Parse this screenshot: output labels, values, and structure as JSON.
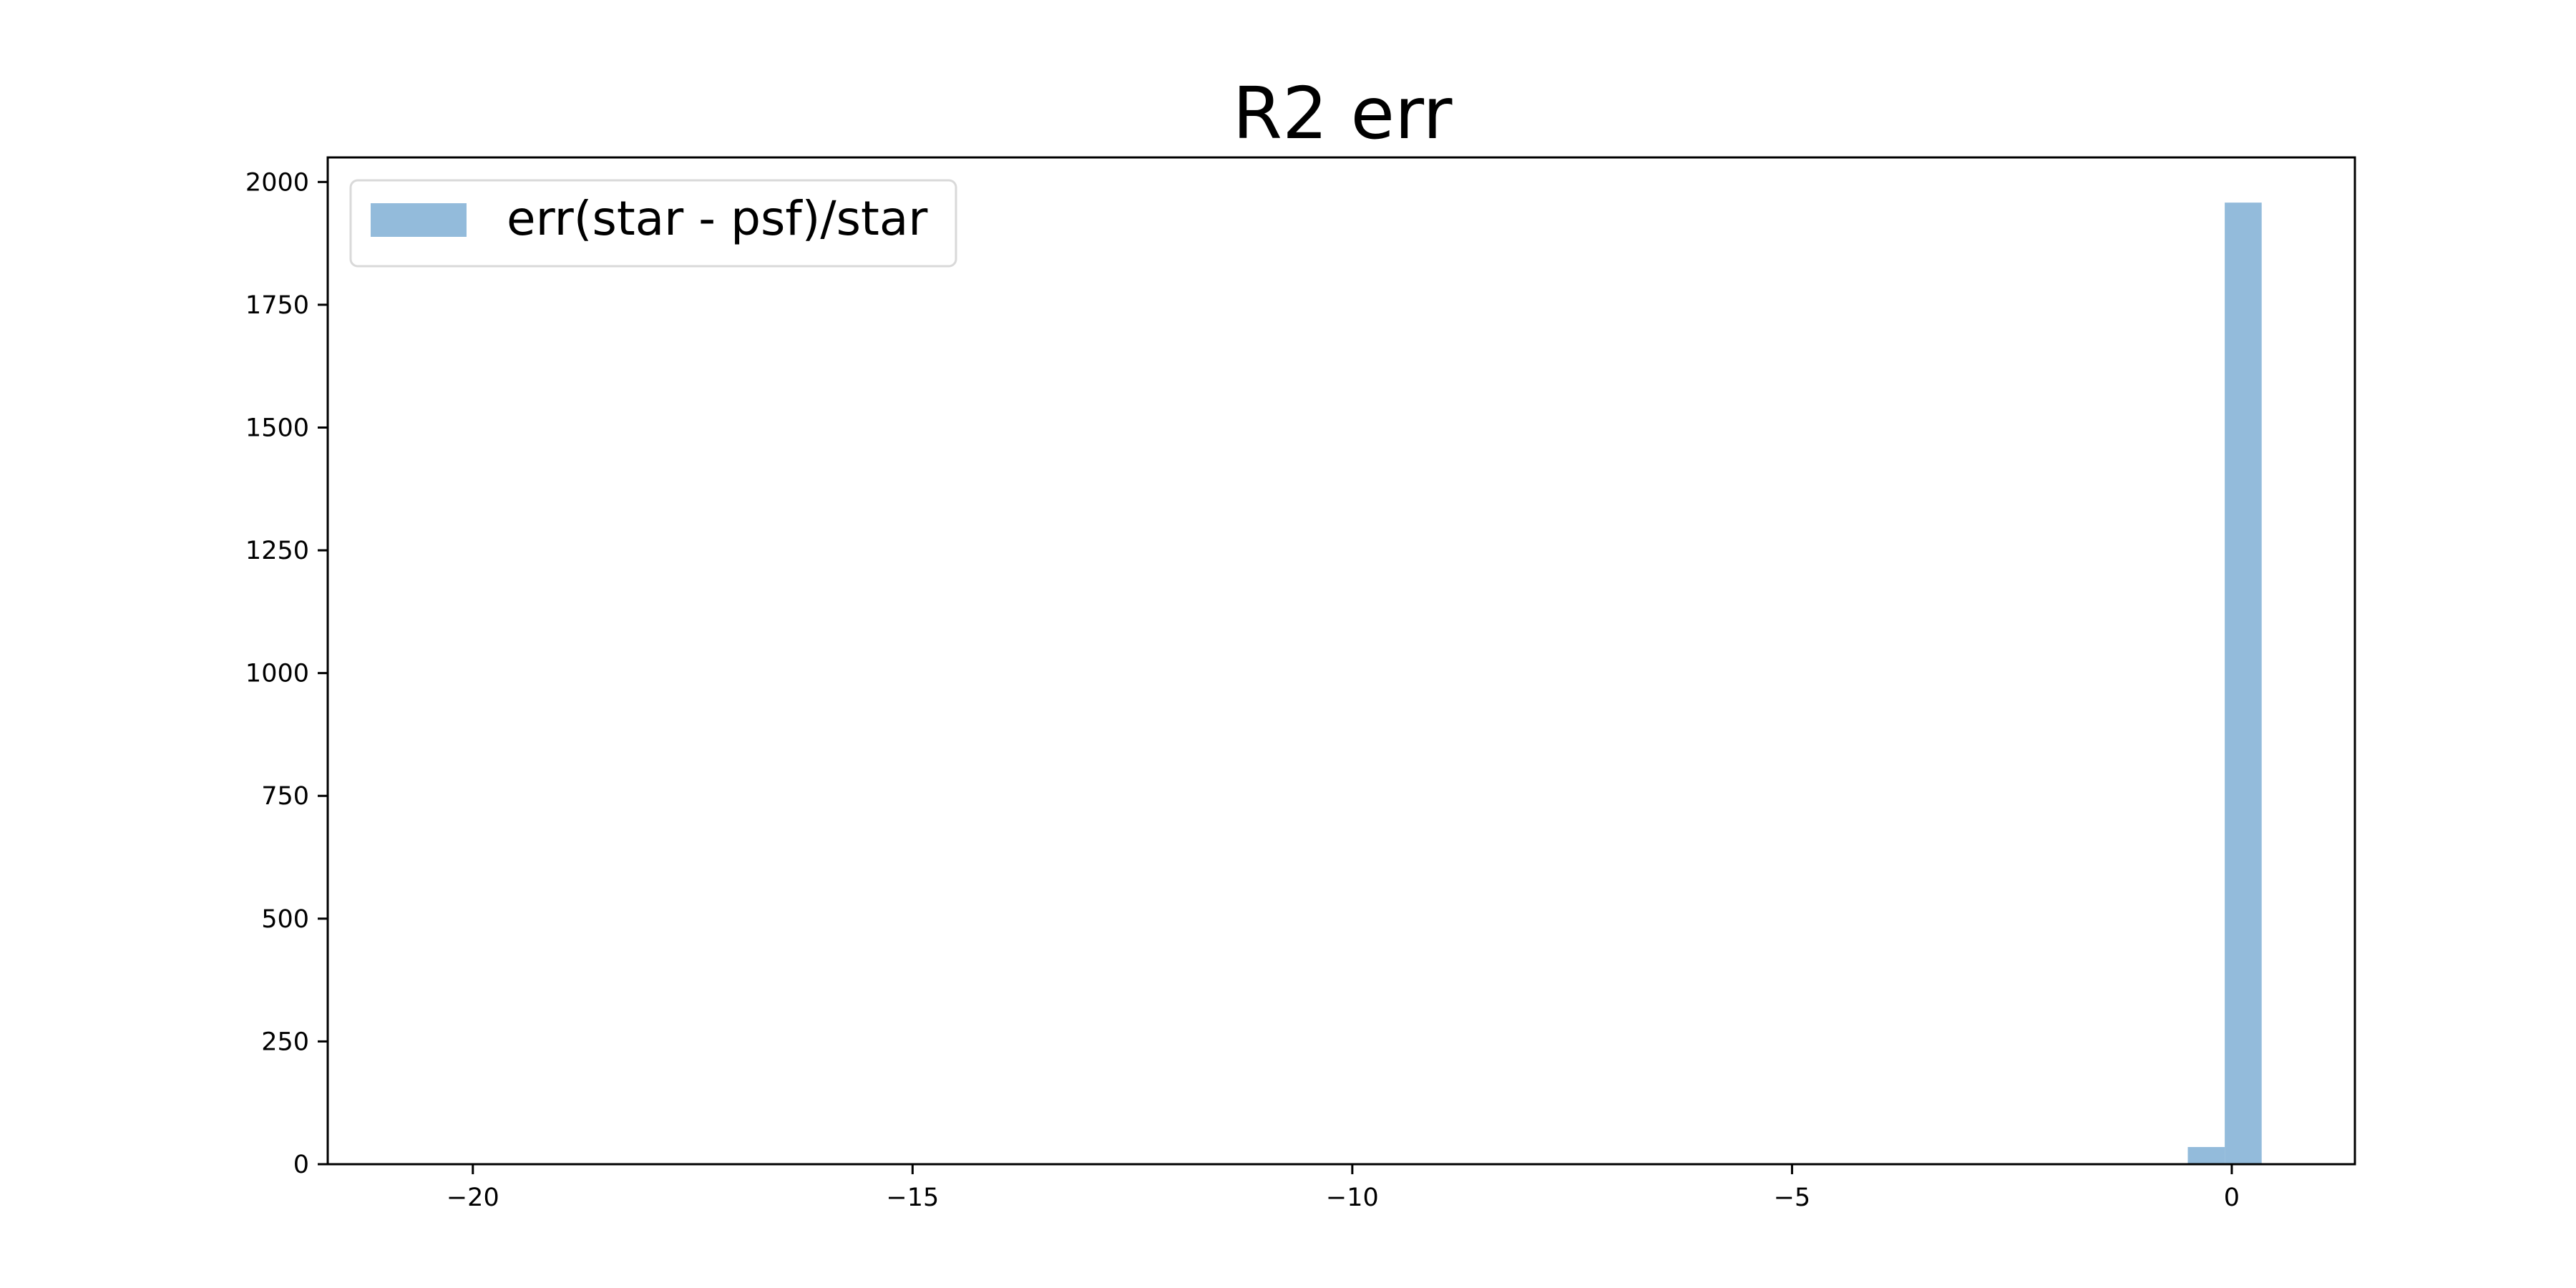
{
  "chart_data": {
    "type": "bar",
    "title": "R2 err",
    "xlabel": "",
    "ylabel": "",
    "xlim": [
      -21.65,
      1.4
    ],
    "ylim": [
      0,
      2050
    ],
    "xticks": [
      -20,
      -15,
      -10,
      -5,
      0
    ],
    "xtick_labels": [
      "−20",
      "−15",
      "−10",
      "−5",
      "0"
    ],
    "yticks": [
      0,
      250,
      500,
      750,
      1000,
      1250,
      1500,
      1750,
      2000
    ],
    "ytick_labels": [
      "0",
      "250",
      "500",
      "750",
      "1000",
      "1250",
      "1500",
      "1750",
      "2000"
    ],
    "legend": {
      "position": "top-left",
      "entries": [
        "err(star - psf)/star"
      ]
    },
    "grid": false,
    "series": [
      {
        "name": "err(star - psf)/star",
        "color": "#93bbdb",
        "bins": [
          {
            "x0": -0.5,
            "x1": -0.08,
            "value": 35
          },
          {
            "x0": -0.08,
            "x1": 0.34,
            "value": 1958
          }
        ]
      }
    ]
  }
}
